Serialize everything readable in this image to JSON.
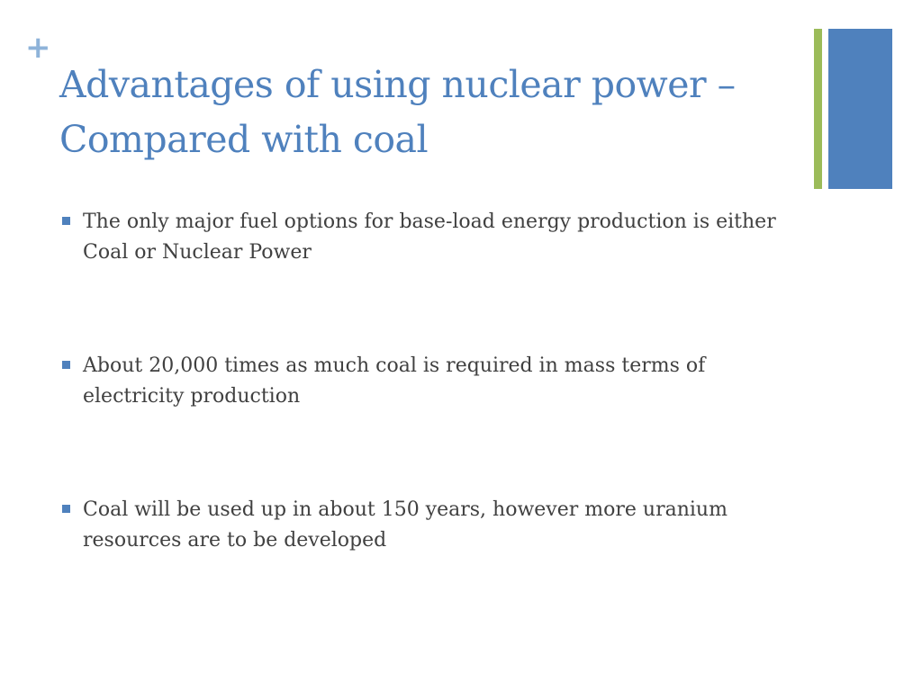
{
  "slide": {
    "title": "Advantages of using nuclear power – Compared with coal",
    "bullets": [
      "The only major fuel options for base-load energy production is either Coal or Nuclear Power",
      "About 20,000 times as much coal is required in mass terms of electricity production",
      "Coal will be used up in about 150 years, however more uranium resources are to be developed"
    ],
    "plus_icon": "plus-icon",
    "colors": {
      "title": "#4f81bd",
      "body_text": "#404040",
      "accent_blue": "#4f81bd",
      "accent_green": "#9bbb59",
      "plus": "#8eb3d9"
    }
  }
}
